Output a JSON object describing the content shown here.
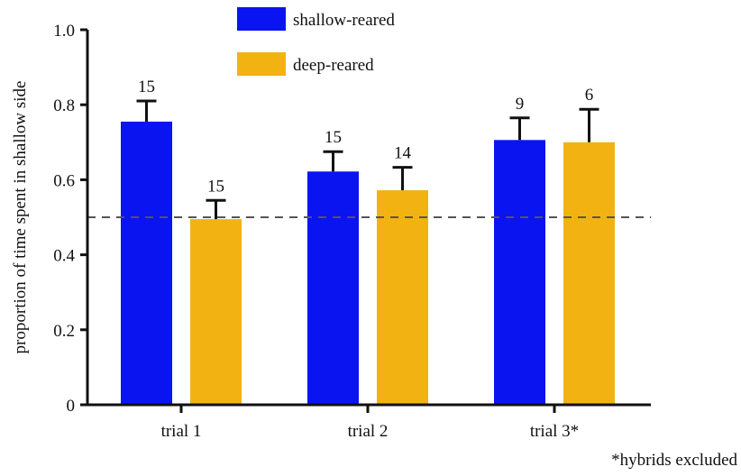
{
  "chart_data": {
    "type": "bar",
    "ylabel": "proportion of time spent in shallow side",
    "xlabel": "",
    "ylim": [
      0,
      1.0
    ],
    "yticks": [
      {
        "value": 0,
        "label": "0"
      },
      {
        "value": 0.2,
        "label": "0.2"
      },
      {
        "value": 0.4,
        "label": "0.4"
      },
      {
        "value": 0.6,
        "label": "0.6"
      },
      {
        "value": 0.8,
        "label": "0.8"
      },
      {
        "value": 1.0,
        "label": "1.0"
      }
    ],
    "categories": [
      "trial 1",
      "trial 2",
      "trial 3*"
    ],
    "series": [
      {
        "name": "shallow-reared",
        "color": "#0a14f0",
        "values": [
          0.755,
          0.622,
          0.706
        ],
        "error_upper": [
          0.81,
          0.675,
          0.765
        ],
        "n_labels": [
          "15",
          "15",
          "9"
        ]
      },
      {
        "name": "deep-reared",
        "color": "#f2b312",
        "values": [
          0.495,
          0.572,
          0.7
        ],
        "error_upper": [
          0.545,
          0.633,
          0.788
        ],
        "n_labels": [
          "15",
          "14",
          "6"
        ]
      }
    ],
    "reference_line": {
      "value": 0.5,
      "style": "dashed",
      "color": "#555555"
    },
    "legend": {
      "placement": "top-center"
    },
    "grid": false,
    "footnote": "*hybrids excluded"
  }
}
